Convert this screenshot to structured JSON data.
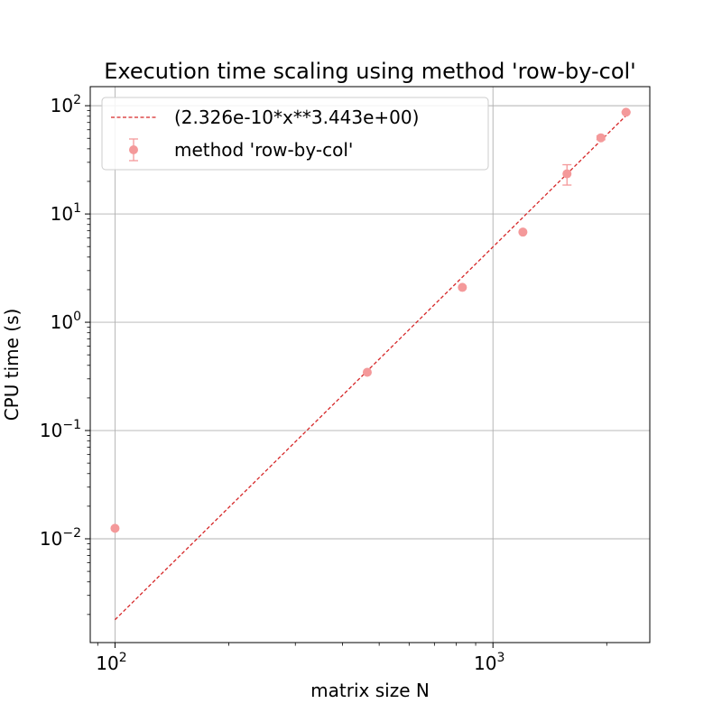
{
  "chart_data": {
    "type": "scatter",
    "title": "Execution time scaling using method 'row-by-col'",
    "xlabel": "matrix size N",
    "ylabel": "CPU time (s)",
    "xscale": "log",
    "yscale": "log",
    "xlim": [
      86,
      2600
    ],
    "ylim": [
      0.0011,
      150
    ],
    "grid": true,
    "legend_position": "top-left",
    "x_ticks": [
      {
        "value": 100,
        "base": "10",
        "exp": "2"
      },
      {
        "value": 1000,
        "base": "10",
        "exp": "3"
      }
    ],
    "y_ticks": [
      {
        "value": 0.01,
        "base": "10",
        "exp": "−2"
      },
      {
        "value": 0.1,
        "base": "10",
        "exp": "−1"
      },
      {
        "value": 1,
        "base": "10",
        "exp": "0"
      },
      {
        "value": 10,
        "base": "10",
        "exp": "1"
      },
      {
        "value": 100,
        "base": "10",
        "exp": "2"
      }
    ],
    "series": [
      {
        "name": "(2.326e-10*x**3.443e+00)",
        "kind": "fit-line",
        "color": "#d62728",
        "style": "dashed",
        "coef": 2.326e-10,
        "exponent": 3.443,
        "x_range": [
          100,
          2250
        ]
      },
      {
        "name": "method 'row-by-col'",
        "kind": "errorbar-points",
        "color": "#f4999a",
        "points": [
          {
            "x": 100,
            "y": 0.0125,
            "err": 0
          },
          {
            "x": 465,
            "y": 0.345,
            "err": 0
          },
          {
            "x": 830,
            "y": 2.1,
            "err": 0
          },
          {
            "x": 1200,
            "y": 6.8,
            "err": 0
          },
          {
            "x": 1570,
            "y": 23.5,
            "err": 5
          },
          {
            "x": 1930,
            "y": 50.5,
            "err": 2
          },
          {
            "x": 2250,
            "y": 87,
            "err": 1
          }
        ]
      }
    ]
  }
}
